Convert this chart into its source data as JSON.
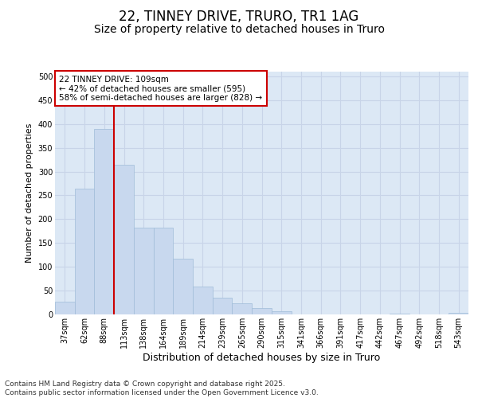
{
  "title": "22, TINNEY DRIVE, TRURO, TR1 1AG",
  "subtitle": "Size of property relative to detached houses in Truro",
  "xlabel": "Distribution of detached houses by size in Truro",
  "ylabel": "Number of detached properties",
  "categories": [
    "37sqm",
    "62sqm",
    "88sqm",
    "113sqm",
    "138sqm",
    "164sqm",
    "189sqm",
    "214sqm",
    "239sqm",
    "265sqm",
    "290sqm",
    "315sqm",
    "341sqm",
    "366sqm",
    "391sqm",
    "417sqm",
    "442sqm",
    "467sqm",
    "492sqm",
    "518sqm",
    "543sqm"
  ],
  "values": [
    27,
    265,
    390,
    315,
    183,
    183,
    117,
    58,
    35,
    23,
    13,
    6,
    0,
    0,
    0,
    0,
    0,
    1,
    0,
    0,
    3
  ],
  "bar_color": "#c8d8ee",
  "bar_edge_color": "#a0bcd8",
  "grid_color": "#c8d4e8",
  "background_color": "#dce8f5",
  "fig_background": "#ffffff",
  "vline_color": "#cc0000",
  "vline_x": 2.5,
  "annotation_text": "22 TINNEY DRIVE: 109sqm\n← 42% of detached houses are smaller (595)\n58% of semi-detached houses are larger (828) →",
  "annotation_box_facecolor": "#ffffff",
  "annotation_box_edgecolor": "#cc0000",
  "footer": "Contains HM Land Registry data © Crown copyright and database right 2025.\nContains public sector information licensed under the Open Government Licence v3.0.",
  "ylim": [
    0,
    510
  ],
  "yticks": [
    0,
    50,
    100,
    150,
    200,
    250,
    300,
    350,
    400,
    450,
    500
  ],
  "title_fontsize": 12,
  "subtitle_fontsize": 10,
  "xlabel_fontsize": 9,
  "ylabel_fontsize": 8,
  "tick_fontsize": 7,
  "annotation_fontsize": 7.5,
  "footer_fontsize": 6.5
}
